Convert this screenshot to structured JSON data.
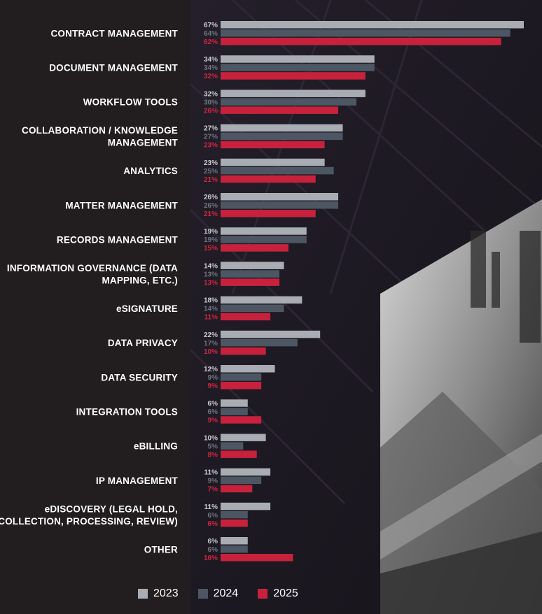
{
  "chart_data": {
    "type": "bar",
    "orientation": "horizontal",
    "title": "",
    "xlabel": "",
    "ylabel": "",
    "xlim": [
      0,
      67
    ],
    "grid": false,
    "legend_position": "bottom",
    "value_suffix": "%",
    "categories": [
      "CONTRACT MANAGEMENT",
      "DOCUMENT MANAGEMENT",
      "WORKFLOW TOOLS",
      "COLLABORATION / KNOWLEDGE MANAGEMENT",
      "ANALYTICS",
      "MATTER MANAGEMENT",
      "RECORDS MANAGEMENT",
      "INFORMATION GOVERNANCE (DATA MAPPING, ETC.)",
      "eSIGNATURE",
      "DATA PRIVACY",
      "DATA SECURITY",
      "INTEGRATION TOOLS",
      "eBILLING",
      "IP MANAGEMENT",
      "eDISCOVERY (LEGAL HOLD, COLLECTION, PROCESSING, REVIEW)",
      "OTHER"
    ],
    "series": [
      {
        "name": "2023",
        "color": "#a9adb3",
        "label_color": "#c9ccd0",
        "values": [
          67,
          34,
          32,
          27,
          23,
          26,
          19,
          14,
          18,
          22,
          12,
          6,
          10,
          11,
          11,
          6
        ]
      },
      {
        "name": "2024",
        "color": "#4d5663",
        "label_color": "#6d7580",
        "values": [
          64,
          34,
          30,
          27,
          25,
          26,
          19,
          13,
          14,
          17,
          9,
          6,
          5,
          9,
          6,
          6
        ]
      },
      {
        "name": "2025",
        "color": "#c8213c",
        "label_color": "#d2263f",
        "values": [
          62,
          32,
          26,
          23,
          21,
          21,
          15,
          13,
          11,
          10,
          9,
          9,
          8,
          7,
          6,
          16
        ]
      }
    ]
  },
  "legend": {
    "items": [
      {
        "label": "2023",
        "color": "#a9adb3"
      },
      {
        "label": "2024",
        "color": "#4d5663"
      },
      {
        "label": "2025",
        "color": "#c8213c"
      }
    ]
  }
}
